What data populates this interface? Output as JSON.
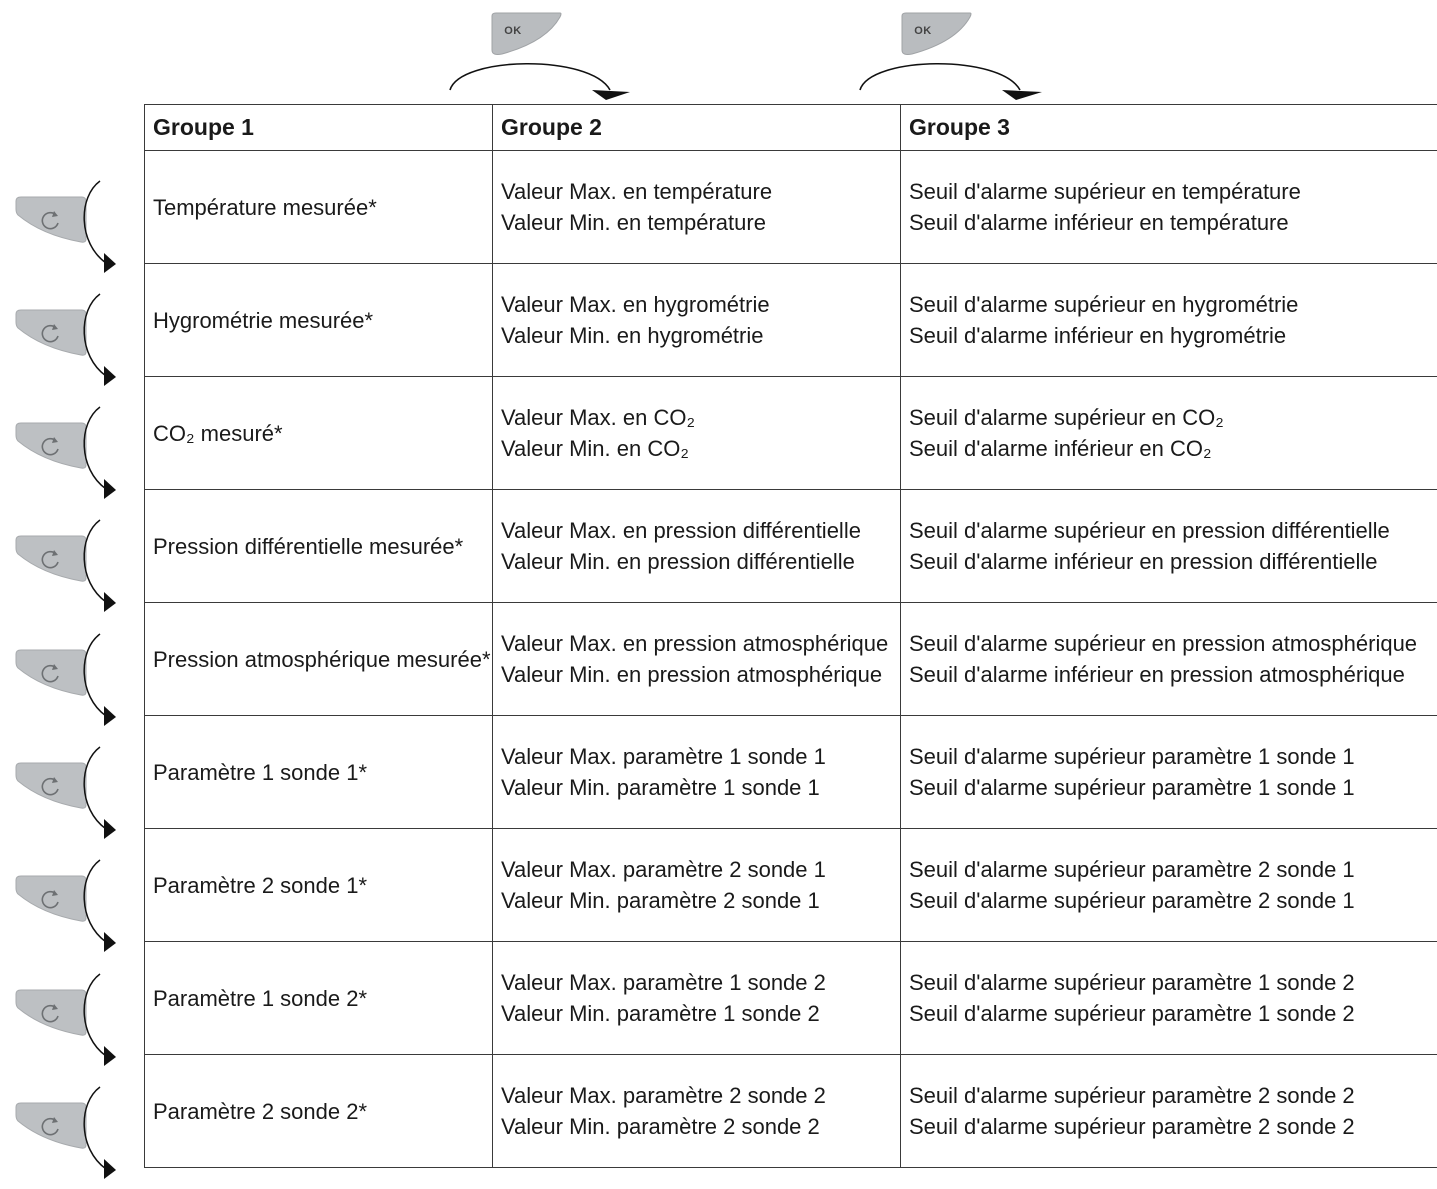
{
  "ok_button_label": "OK",
  "headers": [
    "Groupe 1",
    "Groupe 2",
    "Groupe 3"
  ],
  "rows": [
    {
      "g1": "Température mesurée*",
      "g2": [
        "Valeur Max. en température",
        "Valeur Min. en température"
      ],
      "g3": [
        "Seuil d'alarme supérieur en température",
        "Seuil d'alarme inférieur en température"
      ]
    },
    {
      "g1": "Hygrométrie mesurée*",
      "g2": [
        "Valeur Max. en hygrométrie",
        "Valeur Min. en hygrométrie"
      ],
      "g3": [
        "Seuil d'alarme supérieur en hygrométrie",
        "Seuil d'alarme inférieur en hygrométrie"
      ]
    },
    {
      "g1": "CO₂ mesuré*",
      "g2": [
        "Valeur Max. en CO₂",
        "Valeur Min. en CO₂"
      ],
      "g3": [
        "Seuil d'alarme supérieur en CO₂",
        "Seuil d'alarme inférieur en CO₂"
      ]
    },
    {
      "g1": "Pression différentielle mesurée*",
      "g2": [
        "Valeur Max. en pression différentielle",
        "Valeur Min. en pression différentielle"
      ],
      "g3": [
        "Seuil d'alarme supérieur en pression différentielle",
        "Seuil d'alarme inférieur en pression différentielle"
      ]
    },
    {
      "g1": "Pression atmosphérique mesurée*",
      "g2": [
        "Valeur Max. en pression atmosphérique",
        "Valeur Min. en pression atmosphérique"
      ],
      "g3": [
        "Seuil d'alarme supérieur en pression atmosphérique",
        "Seuil d'alarme inférieur en pression atmosphérique"
      ]
    },
    {
      "g1": "Paramètre 1 sonde 1*",
      "g2": [
        "Valeur Max. paramètre 1 sonde 1",
        "Valeur Min. paramètre 1 sonde 1"
      ],
      "g3": [
        "Seuil d'alarme supérieur paramètre 1 sonde 1",
        "Seuil d'alarme supérieur paramètre 1 sonde 1"
      ]
    },
    {
      "g1": "Paramètre 2 sonde 1*",
      "g2": [
        "Valeur Max. paramètre 2 sonde 1",
        "Valeur Min. paramètre 2 sonde 1"
      ],
      "g3": [
        "Seuil d'alarme supérieur paramètre 2 sonde 1",
        "Seuil d'alarme supérieur paramètre 2 sonde 1"
      ]
    },
    {
      "g1": "Paramètre 1 sonde 2*",
      "g2": [
        "Valeur Max. paramètre 1 sonde 2",
        "Valeur Min. paramètre 1 sonde 2"
      ],
      "g3": [
        "Seuil d'alarme supérieur paramètre 1 sonde 2",
        "Seuil d'alarme supérieur paramètre 1 sonde 2"
      ]
    },
    {
      "g1": "Paramètre 2 sonde 2*",
      "g2": [
        "Valeur Max. paramètre 2 sonde 2",
        "Valeur Min. paramètre 2 sonde 2"
      ],
      "g3": [
        "Seuil d'alarme supérieur paramètre 2 sonde 2",
        "Seuil d'alarme supérieur paramètre 2 sonde 2"
      ]
    }
  ]
}
